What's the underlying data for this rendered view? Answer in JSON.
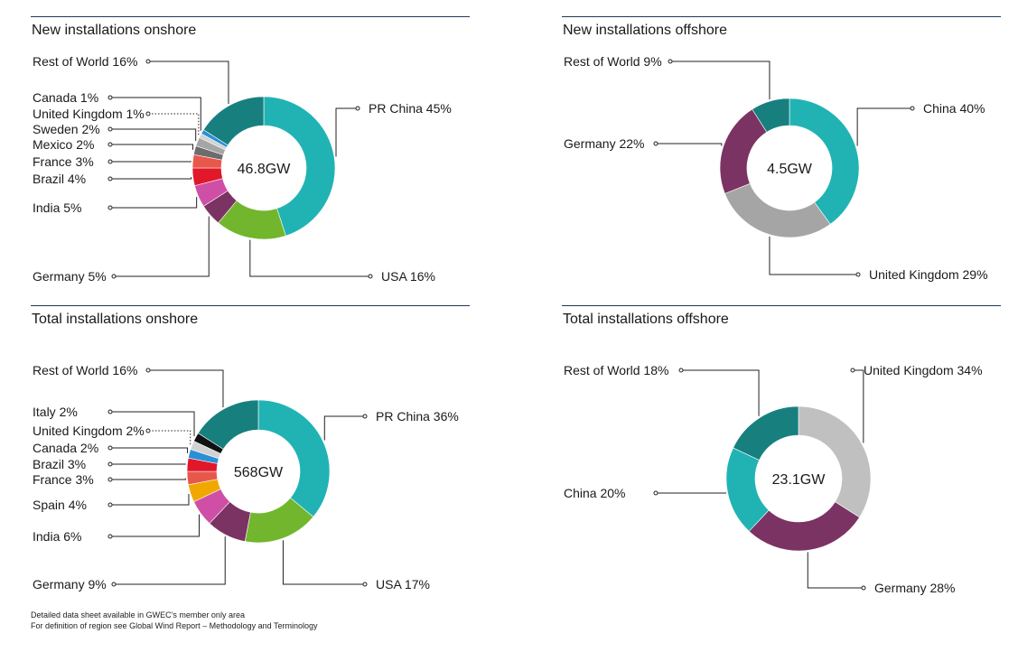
{
  "footnote": {
    "line1": "Detailed data sheet available in GWEC’s member only area",
    "line2": "For definition of region see Global Wind Report – Methodology and Terminology"
  },
  "chart_data": [
    {
      "type": "pie",
      "title": "New installations onshore",
      "center_label": "46.8GW",
      "slices": [
        {
          "label": "PR China 45%",
          "value": 45,
          "color": "#21b3b3"
        },
        {
          "label": "USA 16%",
          "value": 16,
          "color": "#72b62d"
        },
        {
          "label": "Germany 5%",
          "value": 5,
          "color": "#7b3363"
        },
        {
          "label": "India 5%",
          "value": 5,
          "color": "#d04fa6"
        },
        {
          "label": "Brazil 4%",
          "value": 4,
          "color": "#e1172a"
        },
        {
          "label": "France 3%",
          "value": 3,
          "color": "#e8584a"
        },
        {
          "label": "Mexico 2%",
          "value": 2,
          "color": "#6c6c6c"
        },
        {
          "label": "Sweden 2%",
          "value": 2,
          "color": "#a5a5a5"
        },
        {
          "label": "United Kingdom 1%",
          "value": 1,
          "color": "#d2d2d2"
        },
        {
          "label": "Canada 1%",
          "value": 1,
          "color": "#2b8fd8"
        },
        {
          "label": "Rest of World 16%",
          "value": 16,
          "color": "#17807f"
        }
      ]
    },
    {
      "type": "pie",
      "title": "New installations offshore",
      "center_label": "4.5GW",
      "slices": [
        {
          "label": "China 40%",
          "value": 40,
          "color": "#21b3b3"
        },
        {
          "label": "United Kingdom 29%",
          "value": 29,
          "color": "#a5a5a5"
        },
        {
          "label": "Germany 22%",
          "value": 22,
          "color": "#7b3363"
        },
        {
          "label": "Rest of World 9%",
          "value": 9,
          "color": "#17807f"
        }
      ]
    },
    {
      "type": "pie",
      "title": "Total installations onshore",
      "center_label": "568GW",
      "slices": [
        {
          "label": "PR China 36%",
          "value": 36,
          "color": "#21b3b3"
        },
        {
          "label": "USA 17%",
          "value": 17,
          "color": "#72b62d"
        },
        {
          "label": "Germany 9%",
          "value": 9,
          "color": "#7b3363"
        },
        {
          "label": "India 6%",
          "value": 6,
          "color": "#d04fa6"
        },
        {
          "label": "Spain 4%",
          "value": 4,
          "color": "#f0a800"
        },
        {
          "label": "France 3%",
          "value": 3,
          "color": "#e8584a"
        },
        {
          "label": "Brazil 3%",
          "value": 3,
          "color": "#e1172a"
        },
        {
          "label": "Canada 2%",
          "value": 2,
          "color": "#2b8fd8"
        },
        {
          "label": "United Kingdom 2%",
          "value": 2,
          "color": "#d2d2d2"
        },
        {
          "label": "Italy 2%",
          "value": 2,
          "color": "#111111"
        },
        {
          "label": "Rest of World 16%",
          "value": 16,
          "color": "#17807f"
        }
      ]
    },
    {
      "type": "pie",
      "title": "Total installations offshore",
      "center_label": "23.1GW",
      "slices": [
        {
          "label": "United Kingdom 34%",
          "value": 34,
          "color": "#c0c0c0"
        },
        {
          "label": "Germany 28%",
          "value": 28,
          "color": "#7b3363"
        },
        {
          "label": "China 20%",
          "value": 20,
          "color": "#21b3b3"
        },
        {
          "label": "Rest of World 18%",
          "value": 18,
          "color": "#17807f"
        }
      ]
    }
  ]
}
